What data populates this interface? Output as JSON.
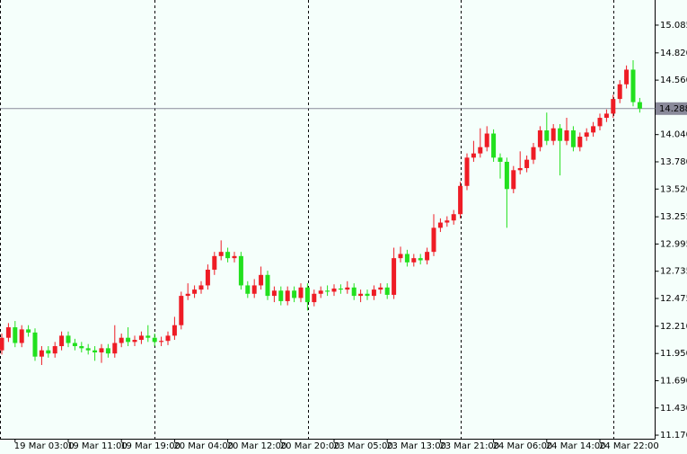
{
  "chart_data": {
    "type": "candlestick",
    "categories": [
      null,
      null,
      "19 Mar 03:00",
      null,
      null,
      null,
      null,
      null,
      null,
      null,
      "19 Mar 11:00",
      null,
      null,
      null,
      null,
      null,
      null,
      null,
      "19 Mar 19:00",
      null,
      null,
      null,
      null,
      null,
      null,
      null,
      "20 Mar 04:00",
      null,
      null,
      null,
      null,
      null,
      null,
      null,
      "20 Mar 12:00",
      null,
      null,
      null,
      null,
      null,
      null,
      null,
      "20 Mar 20:00",
      null,
      null,
      null,
      null,
      null,
      null,
      null,
      "23 Mar 05:00",
      null,
      null,
      null,
      null,
      null,
      null,
      null,
      "23 Mar 13:00",
      null,
      null,
      null,
      null,
      null,
      null,
      null,
      "23 Mar 21:00",
      null,
      null,
      null,
      null,
      null,
      null,
      null,
      "24 Mar 06:00",
      null,
      null,
      null,
      null,
      null,
      null,
      null,
      "24 Mar 14:00",
      null,
      null,
      null,
      null,
      null,
      null,
      null,
      "24 Mar 22:00",
      null,
      null,
      null,
      null,
      null,
      null
    ],
    "open": [
      11.98,
      12.1,
      12.2,
      12.05,
      12.18,
      12.15,
      11.92,
      11.98,
      11.95,
      12.02,
      12.12,
      12.05,
      12.02,
      12.0,
      11.98,
      11.96,
      12.0,
      11.95,
      12.05,
      12.1,
      12.06,
      12.08,
      12.12,
      12.1,
      12.06,
      12.07,
      12.12,
      12.22,
      12.5,
      12.52,
      12.56,
      12.6,
      12.75,
      12.88,
      12.92,
      12.86,
      12.88,
      12.6,
      12.52,
      12.6,
      12.7,
      12.5,
      12.55,
      12.45,
      12.55,
      12.48,
      12.58,
      12.44,
      12.52,
      12.55,
      12.54,
      12.57,
      12.56,
      12.58,
      12.5,
      12.52,
      12.5,
      12.56,
      12.58,
      12.51,
      12.86,
      12.9,
      12.82,
      12.86,
      12.84,
      12.92,
      13.15,
      13.2,
      13.22,
      13.28,
      13.55,
      13.82,
      13.86,
      13.92,
      14.05,
      13.82,
      13.78,
      13.52,
      13.7,
      13.72,
      13.8,
      13.92,
      14.08,
      13.98,
      14.1,
      13.98,
      14.08,
      13.92,
      14.02,
      14.06,
      14.12,
      14.2,
      14.24,
      14.38,
      14.52,
      14.66,
      14.35
    ],
    "high": [
      12.14,
      12.24,
      12.26,
      12.22,
      12.22,
      12.19,
      12.02,
      12.02,
      12.06,
      12.16,
      12.16,
      12.09,
      12.06,
      12.04,
      12.02,
      12.04,
      12.04,
      12.22,
      12.14,
      12.2,
      12.12,
      12.16,
      12.22,
      12.14,
      12.11,
      12.16,
      12.3,
      12.54,
      12.62,
      12.6,
      12.64,
      12.8,
      12.92,
      13.03,
      12.96,
      12.92,
      12.92,
      12.64,
      12.66,
      12.78,
      12.74,
      12.59,
      12.59,
      12.59,
      12.59,
      12.62,
      12.62,
      12.56,
      12.59,
      12.6,
      12.61,
      12.61,
      12.64,
      12.62,
      12.56,
      12.56,
      12.6,
      12.62,
      12.62,
      12.96,
      12.97,
      12.94,
      12.9,
      12.9,
      12.96,
      13.28,
      13.24,
      13.26,
      13.32,
      13.59,
      13.86,
      13.98,
      14.1,
      14.12,
      14.09,
      13.86,
      13.82,
      13.74,
      13.88,
      13.84,
      13.96,
      14.12,
      14.25,
      14.14,
      14.14,
      14.2,
      14.12,
      14.06,
      14.1,
      14.16,
      14.24,
      14.28,
      14.42,
      14.56,
      14.7,
      14.75,
      14.39
    ],
    "low": [
      11.94,
      12.06,
      12.01,
      12.01,
      12.11,
      11.88,
      11.84,
      11.91,
      11.91,
      11.98,
      12.01,
      11.98,
      11.96,
      11.94,
      11.88,
      11.86,
      11.91,
      11.91,
      12.01,
      12.02,
      12.02,
      12.04,
      12.06,
      12.02,
      12.02,
      12.03,
      12.08,
      12.18,
      12.46,
      12.48,
      12.52,
      12.56,
      12.7,
      12.84,
      12.82,
      12.82,
      12.56,
      12.48,
      12.48,
      12.56,
      12.46,
      12.44,
      12.41,
      12.41,
      12.44,
      12.44,
      12.36,
      12.4,
      12.48,
      12.5,
      12.5,
      12.52,
      12.52,
      12.46,
      12.44,
      12.46,
      12.46,
      12.52,
      12.47,
      12.47,
      12.82,
      12.78,
      12.78,
      12.8,
      12.8,
      12.88,
      13.11,
      13.16,
      13.18,
      13.24,
      13.51,
      13.78,
      13.82,
      13.88,
      13.78,
      13.62,
      13.15,
      13.48,
      13.66,
      13.68,
      13.76,
      13.88,
      13.94,
      13.94,
      13.65,
      13.94,
      13.88,
      13.88,
      13.98,
      14.02,
      14.08,
      14.16,
      14.2,
      14.34,
      14.48,
      14.31,
      14.25
    ],
    "close": [
      12.1,
      12.2,
      12.05,
      12.18,
      12.15,
      11.92,
      11.98,
      11.95,
      12.02,
      12.12,
      12.05,
      12.02,
      12.0,
      11.98,
      11.96,
      12.0,
      11.95,
      12.05,
      12.1,
      12.06,
      12.08,
      12.12,
      12.1,
      12.06,
      12.07,
      12.12,
      12.22,
      12.5,
      12.52,
      12.56,
      12.6,
      12.75,
      12.88,
      12.92,
      12.86,
      12.88,
      12.6,
      12.52,
      12.6,
      12.7,
      12.5,
      12.55,
      12.45,
      12.55,
      12.48,
      12.58,
      12.44,
      12.52,
      12.55,
      12.54,
      12.57,
      12.56,
      12.58,
      12.5,
      12.52,
      12.5,
      12.56,
      12.58,
      12.51,
      12.86,
      12.9,
      12.82,
      12.86,
      12.84,
      12.92,
      13.15,
      13.2,
      13.22,
      13.28,
      13.55,
      13.82,
      13.86,
      13.92,
      14.05,
      13.82,
      13.78,
      13.52,
      13.7,
      13.72,
      13.8,
      13.92,
      14.08,
      13.98,
      14.1,
      13.98,
      14.08,
      13.92,
      14.02,
      14.06,
      14.12,
      14.2,
      14.24,
      14.38,
      14.52,
      14.66,
      14.35,
      14.288
    ],
    "up_color": "#ee1c25",
    "down_color": "#22e01e",
    "ylim": [
      11.136,
      15.325
    ],
    "yticks": [
      15.085,
      {
        "value": 14.82,
        "label": "14.820"
      },
      {
        "value": 14.56,
        "label": "14.560"
      },
      {
        "value": 14.04,
        "label": "14.040"
      },
      {
        "value": 13.78,
        "label": "13.780"
      },
      {
        "value": 13.52,
        "label": "13.520"
      },
      13.255,
      12.995,
      12.735,
      12.475,
      {
        "value": 12.21,
        "label": "12.210"
      },
      {
        "value": 11.95,
        "label": "11.950"
      },
      {
        "value": 11.69,
        "label": "11.690"
      },
      {
        "value": 11.43,
        "label": "11.430"
      },
      {
        "value": 11.17,
        "label": "11.170"
      }
    ],
    "last_price": 14.288
  }
}
